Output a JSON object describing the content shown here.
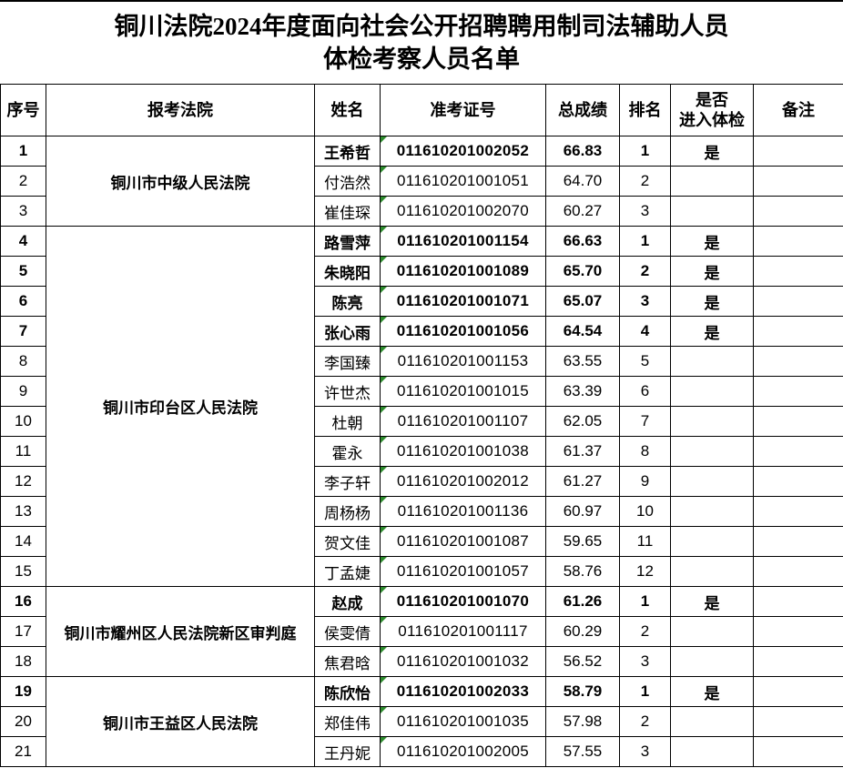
{
  "title": {
    "line1": "铜川法院2024年度面向社会公开招聘聘用制司法辅助人员",
    "line2": "体检考察人员名单"
  },
  "table": {
    "headers": {
      "index": "序号",
      "court": "报考法院",
      "name": "姓名",
      "ticket": "准考证号",
      "score": "总成绩",
      "rank": "排名",
      "medical_line1": "是否",
      "medical_line2": "进入体检",
      "remark": "备注"
    },
    "medical_yes_label": "是",
    "groups": [
      {
        "court": "铜川市中级人民法院",
        "rows": [
          {
            "no": "1",
            "name": "王希哲",
            "ticket": "011610201002052",
            "score": "66.83",
            "rank": "1",
            "medical": "是",
            "remark": "",
            "pass": true
          },
          {
            "no": "2",
            "name": "付浩然",
            "ticket": "011610201001051",
            "score": "64.70",
            "rank": "2",
            "medical": "",
            "remark": "",
            "pass": false
          },
          {
            "no": "3",
            "name": "崔佳琛",
            "ticket": "011610201002070",
            "score": "60.27",
            "rank": "3",
            "medical": "",
            "remark": "",
            "pass": false
          }
        ]
      },
      {
        "court": "铜川市印台区人民法院",
        "rows": [
          {
            "no": "4",
            "name": "路雪萍",
            "ticket": "011610201001154",
            "score": "66.63",
            "rank": "1",
            "medical": "是",
            "remark": "",
            "pass": true
          },
          {
            "no": "5",
            "name": "朱晓阳",
            "ticket": "011610201001089",
            "score": "65.70",
            "rank": "2",
            "medical": "是",
            "remark": "",
            "pass": true
          },
          {
            "no": "6",
            "name": "陈亮",
            "ticket": "011610201001071",
            "score": "65.07",
            "rank": "3",
            "medical": "是",
            "remark": "",
            "pass": true
          },
          {
            "no": "7",
            "name": "张心雨",
            "ticket": "011610201001056",
            "score": "64.54",
            "rank": "4",
            "medical": "是",
            "remark": "",
            "pass": true
          },
          {
            "no": "8",
            "name": "李国臻",
            "ticket": "011610201001153",
            "score": "63.55",
            "rank": "5",
            "medical": "",
            "remark": "",
            "pass": false
          },
          {
            "no": "9",
            "name": "许世杰",
            "ticket": "011610201001015",
            "score": "63.39",
            "rank": "6",
            "medical": "",
            "remark": "",
            "pass": false
          },
          {
            "no": "10",
            "name": "杜朝",
            "ticket": "011610201001107",
            "score": "62.05",
            "rank": "7",
            "medical": "",
            "remark": "",
            "pass": false
          },
          {
            "no": "11",
            "name": "霍永",
            "ticket": "011610201001038",
            "score": "61.37",
            "rank": "8",
            "medical": "",
            "remark": "",
            "pass": false
          },
          {
            "no": "12",
            "name": "李子轩",
            "ticket": "011610201002012",
            "score": "61.27",
            "rank": "9",
            "medical": "",
            "remark": "",
            "pass": false
          },
          {
            "no": "13",
            "name": "周杨杨",
            "ticket": "011610201001136",
            "score": "60.97",
            "rank": "10",
            "medical": "",
            "remark": "",
            "pass": false
          },
          {
            "no": "14",
            "name": "贺文佳",
            "ticket": "011610201001087",
            "score": "59.65",
            "rank": "11",
            "medical": "",
            "remark": "",
            "pass": false
          },
          {
            "no": "15",
            "name": "丁孟婕",
            "ticket": "011610201001057",
            "score": "58.76",
            "rank": "12",
            "medical": "",
            "remark": "",
            "pass": false
          }
        ]
      },
      {
        "court": "铜川市耀州区人民法院新区审判庭",
        "rows": [
          {
            "no": "16",
            "name": "赵成",
            "ticket": "011610201001070",
            "score": "61.26",
            "rank": "1",
            "medical": "是",
            "remark": "",
            "pass": true
          },
          {
            "no": "17",
            "name": "侯雯倩",
            "ticket": "011610201001117",
            "score": "60.29",
            "rank": "2",
            "medical": "",
            "remark": "",
            "pass": false
          },
          {
            "no": "18",
            "name": "焦君晗",
            "ticket": "011610201001032",
            "score": "56.52",
            "rank": "3",
            "medical": "",
            "remark": "",
            "pass": false
          }
        ]
      },
      {
        "court": "铜川市王益区人民法院",
        "rows": [
          {
            "no": "19",
            "name": "陈欣怡",
            "ticket": "011610201002033",
            "score": "58.79",
            "rank": "1",
            "medical": "是",
            "remark": "",
            "pass": true
          },
          {
            "no": "20",
            "name": "郑佳伟",
            "ticket": "011610201001035",
            "score": "57.98",
            "rank": "2",
            "medical": "",
            "remark": "",
            "pass": false
          },
          {
            "no": "21",
            "name": "王丹妮",
            "ticket": "011610201002005",
            "score": "57.55",
            "rank": "3",
            "medical": "",
            "remark": "",
            "pass": false
          }
        ]
      }
    ]
  },
  "icons": {
    "ticket_cell_corner": "number-stored-as-text-flag"
  },
  "colors": {
    "border": "#000000",
    "background": "#ffffff",
    "text": "#000000",
    "flag_green": "#2e8b2e"
  }
}
